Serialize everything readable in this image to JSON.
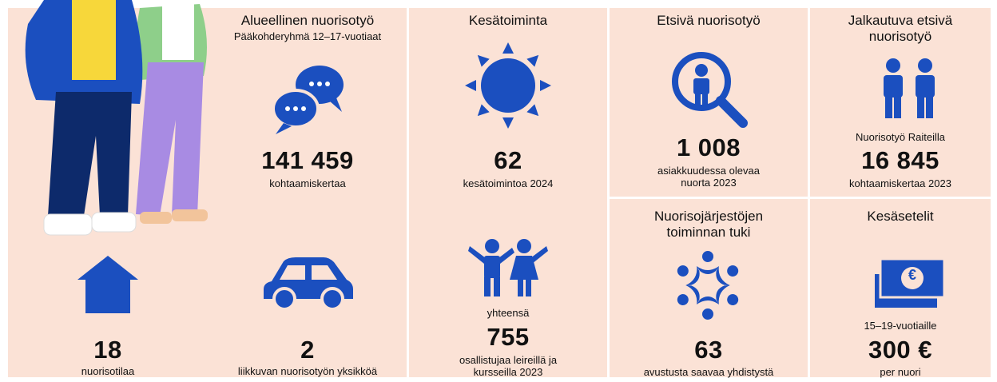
{
  "cells": [
    {
      "title": "Alueellinen nuorisotyö",
      "subtitle": "Pääkohderyhmä 12–17-vuotiaat",
      "value": "141 459",
      "caption": "kohtaamiskertaa"
    },
    {
      "title": "Kesätoiminta",
      "value": "62",
      "caption": "kesätoimintoa 2024"
    },
    {
      "pretext": "yhteensä",
      "value": "755",
      "caption": "osallistujaa leireillä ja kursseilla 2023"
    },
    {
      "title": "Etsivä nuorisotyö",
      "value": "1 008",
      "caption": "asiakkuudessa olevaa nuorta 2023"
    },
    {
      "title": "Jalkautuva etsivä nuorisotyö",
      "pretext": "Nuorisotyö Raiteilla",
      "value": "16 845",
      "caption": "kohtaamiskertaa 2023"
    },
    {
      "value": "18",
      "caption": "nuorisotilaa"
    },
    {
      "value": "2",
      "caption": "liikkuvan nuorisotyön yksikköä"
    },
    {
      "title": "Nuorisojärjestöjen toiminnan tuki",
      "value": "63",
      "caption": "avustusta saavaa yhdistystä"
    },
    {
      "title": "Kesäsetelit",
      "icon_text": "€",
      "pretext": "15–19-vuotiaille",
      "value": "300 €",
      "caption": "per nuori"
    }
  ]
}
